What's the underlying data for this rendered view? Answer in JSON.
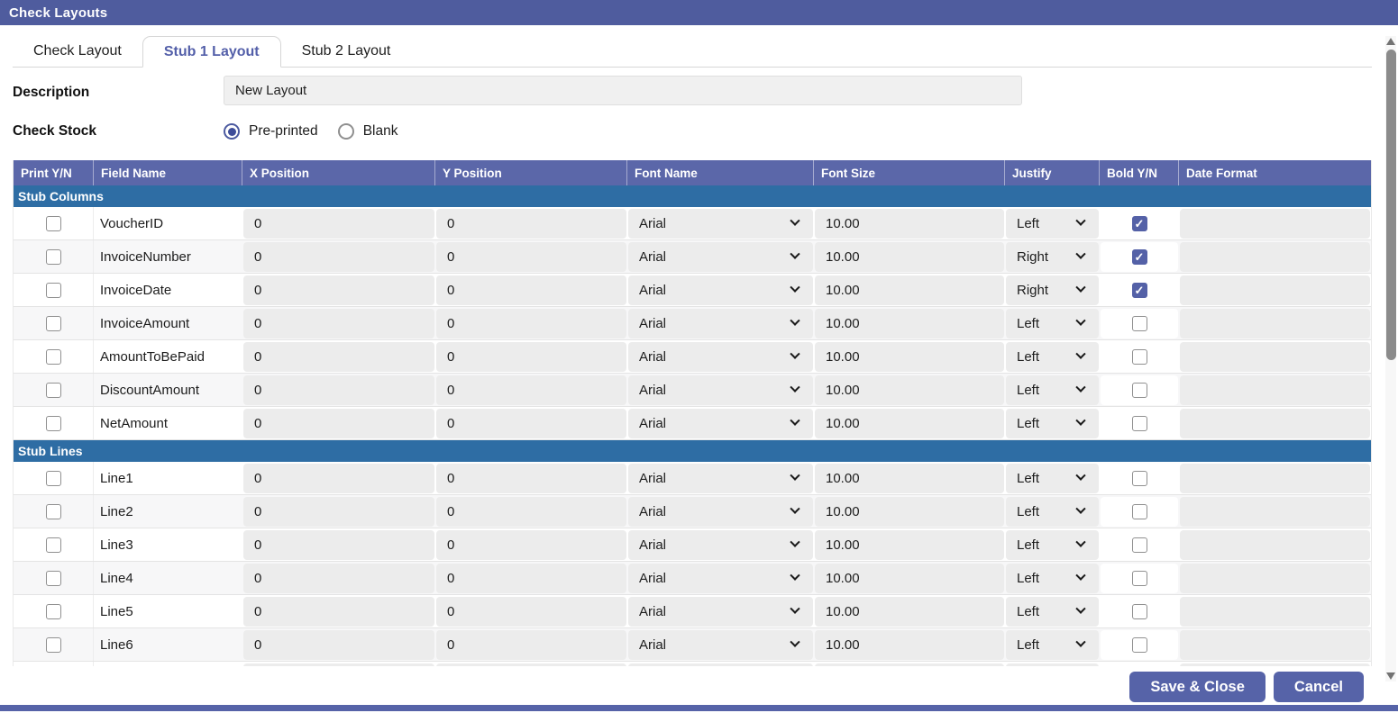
{
  "window": {
    "title": "Check Layouts"
  },
  "tabs": {
    "items": [
      {
        "label": "Check Layout",
        "active": false
      },
      {
        "label": "Stub 1 Layout",
        "active": true
      },
      {
        "label": "Stub 2 Layout",
        "active": false
      }
    ]
  },
  "form": {
    "description_label": "Description",
    "description_value": "New Layout",
    "check_stock_label": "Check Stock",
    "check_stock_options": [
      {
        "label": "Pre-printed",
        "selected": true
      },
      {
        "label": "Blank",
        "selected": false
      }
    ]
  },
  "table": {
    "columns": [
      "Print Y/N",
      "Field Name",
      "X Position",
      "Y Position",
      "Font Name",
      "Font Size",
      "Justify",
      "Bold Y/N",
      "Date Format"
    ],
    "sections": [
      {
        "title": "Stub Columns",
        "rows": [
          {
            "print": false,
            "field": "VoucherID",
            "x": "0",
            "y": "0",
            "font": "Arial",
            "size": "10.00",
            "justify": "Left",
            "bold": true,
            "date_format": ""
          },
          {
            "print": false,
            "field": "InvoiceNumber",
            "x": "0",
            "y": "0",
            "font": "Arial",
            "size": "10.00",
            "justify": "Right",
            "bold": true,
            "date_format": ""
          },
          {
            "print": false,
            "field": "InvoiceDate",
            "x": "0",
            "y": "0",
            "font": "Arial",
            "size": "10.00",
            "justify": "Right",
            "bold": true,
            "date_format": ""
          },
          {
            "print": false,
            "field": "InvoiceAmount",
            "x": "0",
            "y": "0",
            "font": "Arial",
            "size": "10.00",
            "justify": "Left",
            "bold": false,
            "date_format": ""
          },
          {
            "print": false,
            "field": "AmountToBePaid",
            "x": "0",
            "y": "0",
            "font": "Arial",
            "size": "10.00",
            "justify": "Left",
            "bold": false,
            "date_format": ""
          },
          {
            "print": false,
            "field": "DiscountAmount",
            "x": "0",
            "y": "0",
            "font": "Arial",
            "size": "10.00",
            "justify": "Left",
            "bold": false,
            "date_format": ""
          },
          {
            "print": false,
            "field": "NetAmount",
            "x": "0",
            "y": "0",
            "font": "Arial",
            "size": "10.00",
            "justify": "Left",
            "bold": false,
            "date_format": ""
          }
        ]
      },
      {
        "title": "Stub Lines",
        "rows": [
          {
            "print": false,
            "field": "Line1",
            "x": "0",
            "y": "0",
            "font": "Arial",
            "size": "10.00",
            "justify": "Left",
            "bold": false,
            "date_format": ""
          },
          {
            "print": false,
            "field": "Line2",
            "x": "0",
            "y": "0",
            "font": "Arial",
            "size": "10.00",
            "justify": "Left",
            "bold": false,
            "date_format": ""
          },
          {
            "print": false,
            "field": "Line3",
            "x": "0",
            "y": "0",
            "font": "Arial",
            "size": "10.00",
            "justify": "Left",
            "bold": false,
            "date_format": ""
          },
          {
            "print": false,
            "field": "Line4",
            "x": "0",
            "y": "0",
            "font": "Arial",
            "size": "10.00",
            "justify": "Left",
            "bold": false,
            "date_format": ""
          },
          {
            "print": false,
            "field": "Line5",
            "x": "0",
            "y": "0",
            "font": "Arial",
            "size": "10.00",
            "justify": "Left",
            "bold": false,
            "date_format": ""
          },
          {
            "print": false,
            "field": "Line6",
            "x": "0",
            "y": "0",
            "font": "Arial",
            "size": "10.00",
            "justify": "Left",
            "bold": false,
            "date_format": ""
          }
        ]
      }
    ],
    "partial_row_visible": true
  },
  "buttons": {
    "save_label": "Save & Close",
    "cancel_label": "Cancel"
  },
  "colors": {
    "titlebar": "#4f5c9e",
    "table_header": "#5b67a9",
    "section_header": "#2e6da4",
    "accent": "#5663a8",
    "active_tab_text": "#535fa9",
    "checked": "#5461a7"
  }
}
